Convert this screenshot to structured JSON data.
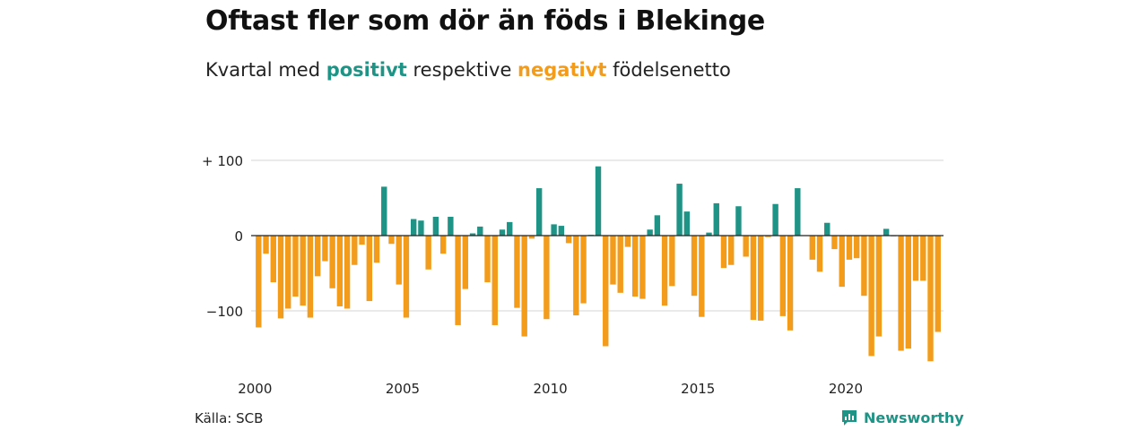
{
  "title": "Oftast fler som dör än föds i Blekinge",
  "subtitle": {
    "before": "Kvartal med ",
    "positive": "positivt",
    "middle": " respektive ",
    "negative": "negativt",
    "after": " födelsenetto"
  },
  "source": "Källa: SCB",
  "brand": {
    "name": "Newsworthy",
    "icon": "newsworthy-logo-icon"
  },
  "colors": {
    "positive": "#1f9486",
    "negative": "#f39c1b",
    "grid": "#d6d6d6",
    "zero": "#222222"
  },
  "chart_data": {
    "type": "bar",
    "title": "Oftast fler som dör än föds i Blekinge",
    "subtitle": "Kvartal med positivt respektive negativt födelsenetto",
    "x_start": 2000,
    "frequency": "quarter",
    "ylim": [
      -165,
      100
    ],
    "y_ticks": [
      {
        "value": 100,
        "label": "+ 100"
      },
      {
        "value": 0,
        "label": "0"
      },
      {
        "value": -100,
        "label": "−100"
      }
    ],
    "x_ticks": [
      "2000",
      "2005",
      "2010",
      "2015",
      "2020"
    ],
    "grid": true,
    "values": [
      -122,
      -24,
      -62,
      -110,
      -97,
      -81,
      -93,
      -109,
      -54,
      -34,
      -70,
      -94,
      -97,
      -39,
      -12,
      -87,
      -36,
      65,
      -11,
      -65,
      -109,
      22,
      20,
      -45,
      25,
      -24,
      25,
      -119,
      -71,
      3,
      12,
      -62,
      -119,
      8,
      18,
      -96,
      -134,
      -4,
      63,
      -111,
      15,
      13,
      -10,
      -106,
      -90,
      1,
      92,
      -147,
      -65,
      -76,
      -15,
      -81,
      -84,
      8,
      27,
      -93,
      -67,
      69,
      32,
      -80,
      -108,
      4,
      43,
      -43,
      -39,
      39,
      -28,
      -112,
      -113,
      -2,
      42,
      -107,
      -126,
      63,
      0,
      -32,
      -48,
      17,
      -18,
      -68,
      -32,
      -30,
      -80,
      -160,
      -134,
      9,
      -1,
      -153,
      -150,
      -60,
      -60,
      -167,
      -128
    ]
  }
}
